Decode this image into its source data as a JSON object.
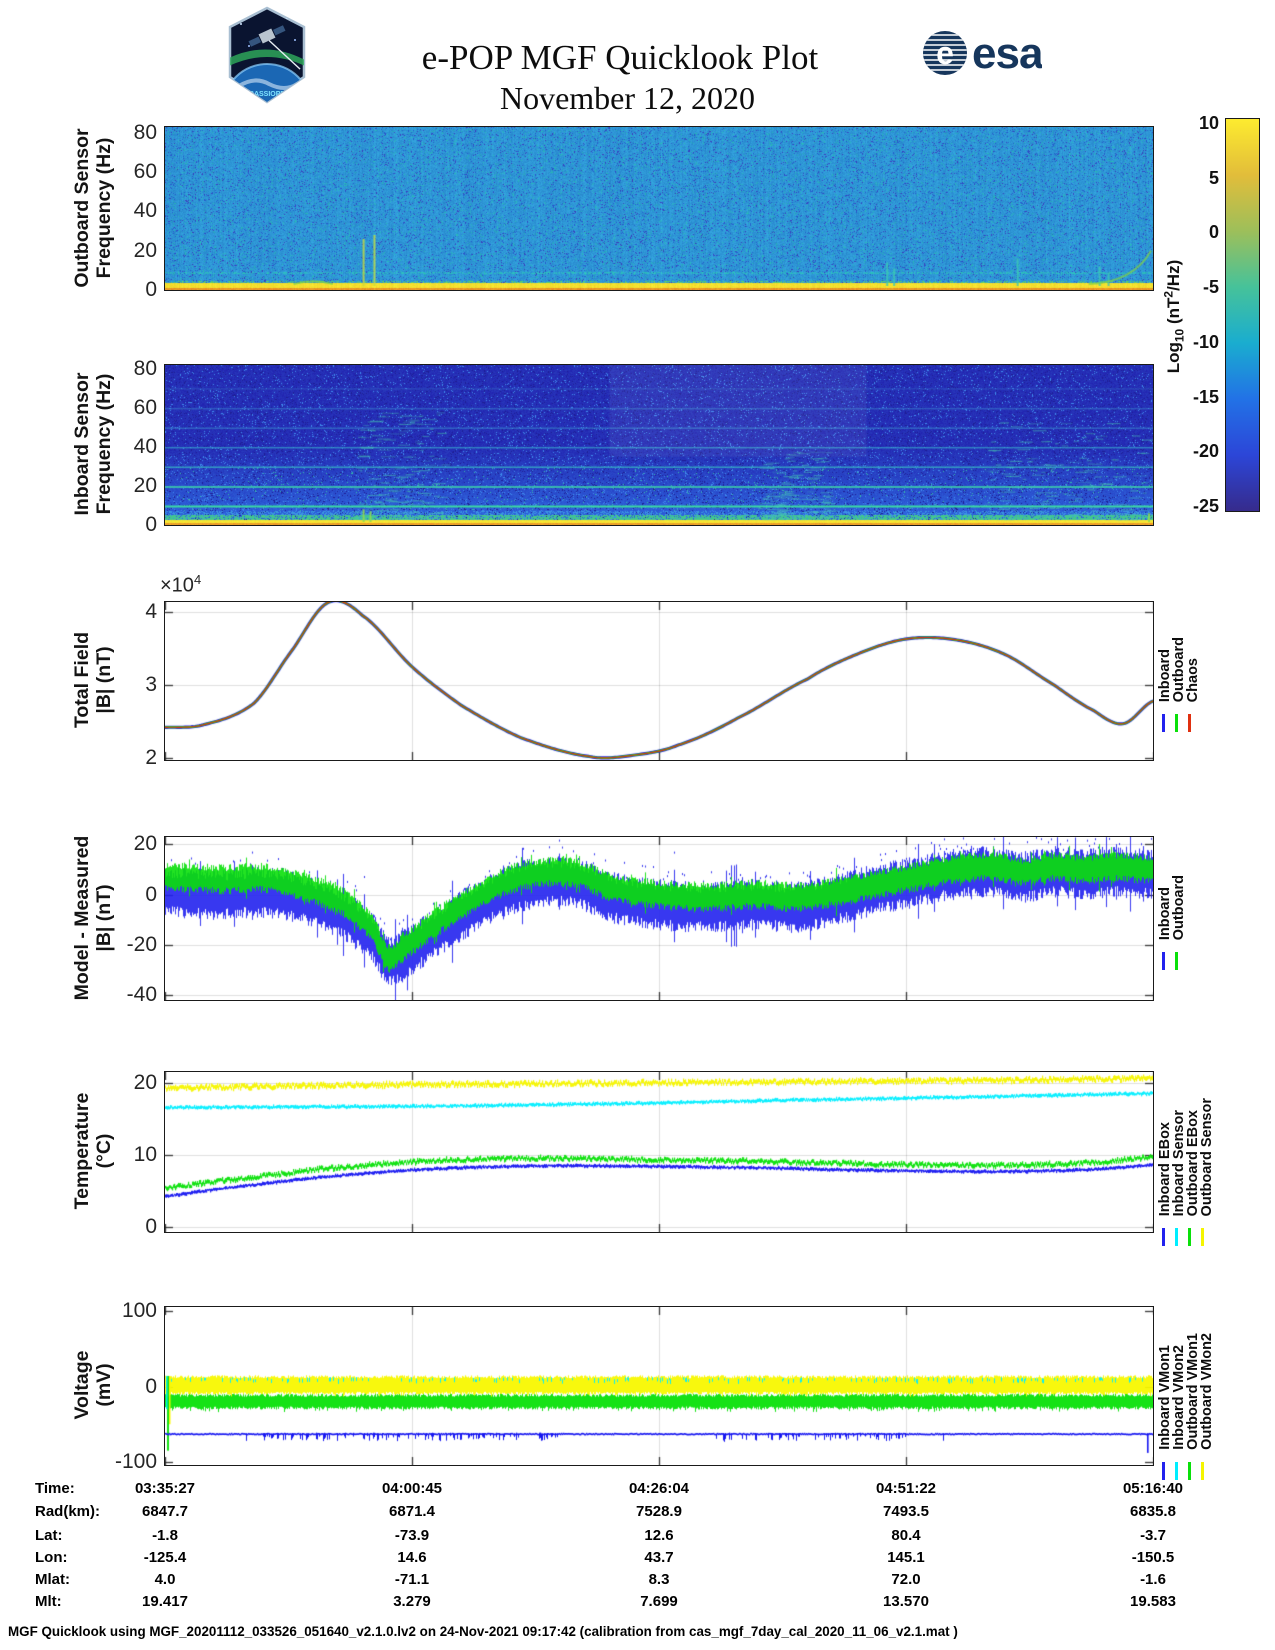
{
  "header": {
    "title": "e-POP MGF Quicklook Plot",
    "date": "November 12, 2020",
    "patch_label": "CASSIOPE",
    "esa_wordmark": "esa"
  },
  "colorbar": {
    "label_parts": {
      "prefix": "Log",
      "sub": "10",
      "mid": " (nT",
      "sup": "2",
      "suffix": "/Hz)"
    },
    "ticks": [
      "10",
      "5",
      "0",
      "-5",
      "-10",
      "-15",
      "-20",
      "-25"
    ],
    "vmax": 10,
    "vmin": -25,
    "gradient_top_to_bottom": [
      "#fdeb2f",
      "#e2bd3a",
      "#9dbf5a",
      "#46c29a",
      "#1aadcf",
      "#2272e6",
      "#2c46d8",
      "#362b8c"
    ]
  },
  "time_ticks": [
    "03:35:27",
    "04:00:45",
    "04:26:04",
    "04:51:22",
    "05:16:40"
  ],
  "table": {
    "rows": [
      {
        "label": "Time:",
        "values": [
          "03:35:27",
          "04:00:45",
          "04:26:04",
          "04:51:22",
          "05:16:40"
        ]
      },
      {
        "label": "Rad(km):",
        "values": [
          "6847.7",
          "6871.4",
          "7528.9",
          "7493.5",
          "6835.8"
        ]
      },
      {
        "label": "Lat:",
        "values": [
          "-1.8",
          "-73.9",
          "12.6",
          "80.4",
          "-3.7"
        ]
      },
      {
        "label": "Lon:",
        "values": [
          "-125.4",
          "14.6",
          "43.7",
          "145.1",
          "-150.5"
        ]
      },
      {
        "label": "Mlat:",
        "values": [
          "4.0",
          "-71.1",
          "8.3",
          "72.0",
          "-1.6"
        ]
      },
      {
        "label": "Mlt:",
        "values": [
          "19.417",
          "3.279",
          "7.699",
          "13.570",
          "19.583"
        ]
      }
    ]
  },
  "footer": "MGF Quicklook using MGF_20201112_033526_051640_v2.1.0.lv2 on 24-Nov-2021 09:17:42 (calibration from cas_mgf_7day_cal_2020_11_06_v2.1.mat )",
  "chart_data": [
    {
      "id": "outboard_spectrogram",
      "type": "heatmap",
      "ylabel": [
        "Outboard Sensor",
        "Frequency (Hz)"
      ],
      "ylim": [
        0,
        83
      ],
      "yticks": [
        {
          "v": 0,
          "l": "0"
        },
        {
          "v": 20,
          "l": "20"
        },
        {
          "v": 40,
          "l": "40"
        },
        {
          "v": 60,
          "l": "60"
        },
        {
          "v": 80,
          "l": "80"
        }
      ],
      "value_units": "Log10 (nT^2/Hz)",
      "base_rgb": [
        46,
        150,
        214
      ],
      "features": {
        "baseline_bands": [
          {
            "f0": 0,
            "f1": 1.4,
            "rgb": [
              232,
              150,
              38
            ]
          },
          {
            "f0": 1.4,
            "f1": 3.6,
            "rgb": [
              244,
              224,
              46
            ]
          }
        ],
        "faint_line_hz": 9,
        "spikes": [
          {
            "t": 0.2,
            "f": 26
          },
          {
            "t": 0.211,
            "f": 28
          },
          {
            "t": 0.73,
            "f": 14
          },
          {
            "t": 0.737,
            "f": 11
          },
          {
            "t": 0.862,
            "f": 16
          },
          {
            "t": 0.945,
            "f": 12
          },
          {
            "t": 0.954,
            "f": 9
          }
        ]
      }
    },
    {
      "id": "inboard_spectrogram",
      "type": "heatmap",
      "ylabel": [
        "Inboard Sensor",
        "Frequency (Hz)"
      ],
      "ylim": [
        0,
        82
      ],
      "yticks": [
        {
          "v": 0,
          "l": "0"
        },
        {
          "v": 20,
          "l": "20"
        },
        {
          "v": 40,
          "l": "40"
        },
        {
          "v": 60,
          "l": "60"
        },
        {
          "v": 80,
          "l": "80"
        }
      ],
      "value_units": "Log10 (nT^2/Hz)",
      "base_rgb": [
        40,
        55,
        200
      ],
      "features": {
        "interference_lines_hz": [
          10,
          20,
          30,
          40,
          50,
          60,
          70
        ],
        "baseline_bands": [
          {
            "f0": 0,
            "f1": 1.3,
            "rgb": [
              234,
              158,
              40
            ]
          },
          {
            "f0": 1.3,
            "f1": 3.0,
            "rgb": [
              246,
              230,
              52
            ]
          },
          {
            "f0": 3.0,
            "f1": 5.5,
            "rgb": [
              66,
              198,
              142
            ]
          }
        ],
        "chirp_clusters": [
          {
            "t0": 0.19,
            "t1": 0.28,
            "fmax": 55
          },
          {
            "t0": 0.6,
            "t1": 0.67,
            "fmax": 35
          },
          {
            "t0": 0.83,
            "t1": 0.99,
            "fmax": 50
          }
        ],
        "light_region": {
          "t0": 0.45,
          "t1": 0.71,
          "fmin": 35
        },
        "spikes": [
          {
            "t": 0.2,
            "f": 8
          },
          {
            "t": 0.207,
            "f": 7
          },
          {
            "t": 0.995,
            "f": 6
          }
        ]
      }
    },
    {
      "id": "total_field",
      "type": "line",
      "ylabel": [
        "Total Field",
        "|B| (nT)"
      ],
      "multiplier": {
        "base": "×10",
        "exp": "4"
      },
      "ylim": [
        1.973,
        4.137
      ],
      "yticks": [
        {
          "v": 2,
          "l": "2"
        },
        {
          "v": 3,
          "l": "3"
        },
        {
          "v": 4,
          "l": "4"
        }
      ],
      "legend": [
        {
          "label": "Inboard",
          "color": "#2222ee"
        },
        {
          "label": "Outboard",
          "color": "#0ae00a"
        },
        {
          "label": "Chaos",
          "color": "#e03010"
        }
      ],
      "note": "three curves overlap",
      "points": [
        [
          0,
          2.42
        ],
        [
          0.04,
          2.46
        ],
        [
          0.09,
          2.75
        ],
        [
          0.13,
          3.5
        ],
        [
          0.165,
          4.13
        ],
        [
          0.2,
          3.95
        ],
        [
          0.25,
          3.25
        ],
        [
          0.3,
          2.72
        ],
        [
          0.36,
          2.28
        ],
        [
          0.43,
          2.02
        ],
        [
          0.475,
          2.04
        ],
        [
          0.52,
          2.18
        ],
        [
          0.58,
          2.55
        ],
        [
          0.65,
          3.08
        ],
        [
          0.7,
          3.42
        ],
        [
          0.75,
          3.63
        ],
        [
          0.8,
          3.62
        ],
        [
          0.85,
          3.42
        ],
        [
          0.9,
          3.0
        ],
        [
          0.94,
          2.65
        ],
        [
          0.97,
          2.47
        ],
        [
          1.0,
          2.78
        ]
      ]
    },
    {
      "id": "model_minus_measured",
      "type": "line-band",
      "ylabel": [
        "Model - Measured",
        "|B| (nT)"
      ],
      "ylim": [
        -41.8,
        22.8
      ],
      "yticks": [
        {
          "v": -40,
          "l": "-40"
        },
        {
          "v": -20,
          "l": "-20"
        },
        {
          "v": 0,
          "l": "0"
        },
        {
          "v": 20,
          "l": "20"
        }
      ],
      "legend": [
        {
          "label": "Inboard",
          "color": "#2222ee"
        },
        {
          "label": "Outboard",
          "color": "#0ae00a"
        }
      ],
      "series": [
        {
          "name": "Inboard",
          "color": "#2222ee",
          "halfwidth": 8.5,
          "center": [
            [
              0,
              1
            ],
            [
              0.03,
              0.5
            ],
            [
              0.06,
              0
            ],
            [
              0.1,
              0.8
            ],
            [
              0.14,
              -2
            ],
            [
              0.18,
              -8
            ],
            [
              0.21,
              -17
            ],
            [
              0.225,
              -26
            ],
            [
              0.24,
              -24
            ],
            [
              0.27,
              -16
            ],
            [
              0.31,
              -6
            ],
            [
              0.35,
              2
            ],
            [
              0.39,
              5
            ],
            [
              0.42,
              4
            ],
            [
              0.45,
              -1
            ],
            [
              0.5,
              -4
            ],
            [
              0.55,
              -5
            ],
            [
              0.6,
              -4
            ],
            [
              0.64,
              -5
            ],
            [
              0.68,
              -2
            ],
            [
              0.72,
              2
            ],
            [
              0.76,
              5
            ],
            [
              0.8,
              8
            ],
            [
              0.84,
              9
            ],
            [
              0.87,
              7
            ],
            [
              0.9,
              9
            ],
            [
              0.93,
              8
            ],
            [
              0.96,
              9
            ],
            [
              1,
              8
            ]
          ]
        },
        {
          "name": "Outboard",
          "color": "#0ae00a",
          "halfwidth": 5,
          "center": [
            [
              0,
              7
            ],
            [
              0.03,
              6.5
            ],
            [
              0.06,
              6
            ],
            [
              0.1,
              6.5
            ],
            [
              0.14,
              3
            ],
            [
              0.18,
              -3
            ],
            [
              0.21,
              -13
            ],
            [
              0.225,
              -25
            ],
            [
              0.24,
              -21
            ],
            [
              0.27,
              -12
            ],
            [
              0.31,
              -2
            ],
            [
              0.35,
              6
            ],
            [
              0.39,
              9
            ],
            [
              0.42,
              8
            ],
            [
              0.45,
              3
            ],
            [
              0.5,
              0
            ],
            [
              0.55,
              -1
            ],
            [
              0.6,
              0
            ],
            [
              0.64,
              -1
            ],
            [
              0.68,
              1
            ],
            [
              0.72,
              4
            ],
            [
              0.76,
              7
            ],
            [
              0.8,
              10
            ],
            [
              0.84,
              11
            ],
            [
              0.87,
              9
            ],
            [
              0.9,
              11
            ],
            [
              0.93,
              10
            ],
            [
              0.96,
              11
            ],
            [
              1,
              10
            ]
          ]
        }
      ]
    },
    {
      "id": "temperature",
      "type": "line",
      "ylabel": [
        "Temperature",
        "(°C)"
      ],
      "ylim": [
        -0.7,
        21.5
      ],
      "yticks": [
        {
          "v": 0,
          "l": "0"
        },
        {
          "v": 10,
          "l": "10"
        },
        {
          "v": 20,
          "l": "20"
        }
      ],
      "legend": [
        {
          "label": "Inboard EBox",
          "color": "#2222ee"
        },
        {
          "label": "Inboard Sensor",
          "color": "#00eeff"
        },
        {
          "label": "Outboard EBox",
          "color": "#0ae00a"
        },
        {
          "label": "Outboard Sensor",
          "color": "#f5f500"
        }
      ],
      "series": [
        {
          "name": "Inboard EBox",
          "color": "#1616f0",
          "noise": 0.1,
          "thick": 1.6,
          "points": [
            [
              0,
              4.3
            ],
            [
              0.05,
              5.2
            ],
            [
              0.1,
              6.0
            ],
            [
              0.15,
              6.8
            ],
            [
              0.2,
              7.4
            ],
            [
              0.25,
              7.9
            ],
            [
              0.3,
              8.2
            ],
            [
              0.35,
              8.4
            ],
            [
              0.4,
              8.5
            ],
            [
              0.45,
              8.45
            ],
            [
              0.5,
              8.4
            ],
            [
              0.55,
              8.3
            ],
            [
              0.6,
              8.2
            ],
            [
              0.65,
              8.05
            ],
            [
              0.7,
              7.9
            ],
            [
              0.75,
              7.8
            ],
            [
              0.8,
              7.7
            ],
            [
              0.85,
              7.7
            ],
            [
              0.9,
              7.8
            ],
            [
              0.95,
              8.05
            ],
            [
              1,
              8.6
            ]
          ]
        },
        {
          "name": "Outboard EBox",
          "color": "#0ae00a",
          "noise": 0.25,
          "thick": 2.6,
          "points": [
            [
              0,
              5.4
            ],
            [
              0.05,
              6.3
            ],
            [
              0.1,
              7.1
            ],
            [
              0.15,
              7.9
            ],
            [
              0.2,
              8.5
            ],
            [
              0.25,
              9.0
            ],
            [
              0.3,
              9.35
            ],
            [
              0.35,
              9.5
            ],
            [
              0.4,
              9.5
            ],
            [
              0.45,
              9.4
            ],
            [
              0.5,
              9.3
            ],
            [
              0.55,
              9.2
            ],
            [
              0.6,
              9.1
            ],
            [
              0.65,
              8.95
            ],
            [
              0.7,
              8.8
            ],
            [
              0.75,
              8.65
            ],
            [
              0.8,
              8.55
            ],
            [
              0.85,
              8.55
            ],
            [
              0.9,
              8.7
            ],
            [
              0.95,
              9.0
            ],
            [
              1,
              9.7
            ]
          ]
        },
        {
          "name": "Inboard Sensor",
          "color": "#00eeff",
          "noise": 0.12,
          "thick": 1.8,
          "points": [
            [
              0,
              16.6
            ],
            [
              0.1,
              16.65
            ],
            [
              0.2,
              16.7
            ],
            [
              0.3,
              16.8
            ],
            [
              0.4,
              17.0
            ],
            [
              0.5,
              17.2
            ],
            [
              0.6,
              17.5
            ],
            [
              0.7,
              17.75
            ],
            [
              0.8,
              18.0
            ],
            [
              0.9,
              18.25
            ],
            [
              1,
              18.5
            ]
          ]
        },
        {
          "name": "Outboard Sensor",
          "color": "#f5f500",
          "noise": 0.28,
          "thick": 3.0,
          "points": [
            [
              0,
              19.3
            ],
            [
              0.1,
              19.5
            ],
            [
              0.2,
              19.7
            ],
            [
              0.3,
              19.8
            ],
            [
              0.4,
              19.9
            ],
            [
              0.5,
              20.0
            ],
            [
              0.6,
              20.1
            ],
            [
              0.7,
              20.2
            ],
            [
              0.8,
              20.3
            ],
            [
              0.9,
              20.45
            ],
            [
              1,
              20.6
            ]
          ]
        }
      ]
    },
    {
      "id": "voltage",
      "type": "line-noise",
      "ylabel": [
        "Voltage",
        "(mV)"
      ],
      "ylim": [
        -104,
        105.4
      ],
      "yticks": [
        {
          "v": -100,
          "l": "-100"
        },
        {
          "v": 0,
          "l": "0"
        },
        {
          "v": 100,
          "l": "100"
        }
      ],
      "legend": [
        {
          "label": "Inboard VMon1",
          "color": "#2222ee"
        },
        {
          "label": "Inboard VMon2",
          "color": "#00eeff"
        },
        {
          "label": "Outboard VMon1",
          "color": "#0ae00a"
        },
        {
          "label": "Outboard VMon2",
          "color": "#f5f500"
        }
      ],
      "series": [
        {
          "name": "Inboard VMon1",
          "color": "#1616f0",
          "style": "baseline",
          "level": -62,
          "fuzz_regions": [
            [
              0.08,
              0.4
            ],
            [
              0.55,
              0.75
            ]
          ],
          "end_spike": -88
        },
        {
          "name": "Inboard VMon2",
          "color": "#00eeff",
          "style": "sparse",
          "level": 11
        },
        {
          "name": "Outboard VMon1",
          "color": "#0ae00a",
          "style": "band",
          "center": -20,
          "halfwidth": 6.5,
          "spike_to": -31
        },
        {
          "name": "Outboard VMon2",
          "color": "#f8f800",
          "style": "band",
          "center": 2,
          "halfwidth": 9,
          "spike_to": -15
        }
      ]
    }
  ]
}
